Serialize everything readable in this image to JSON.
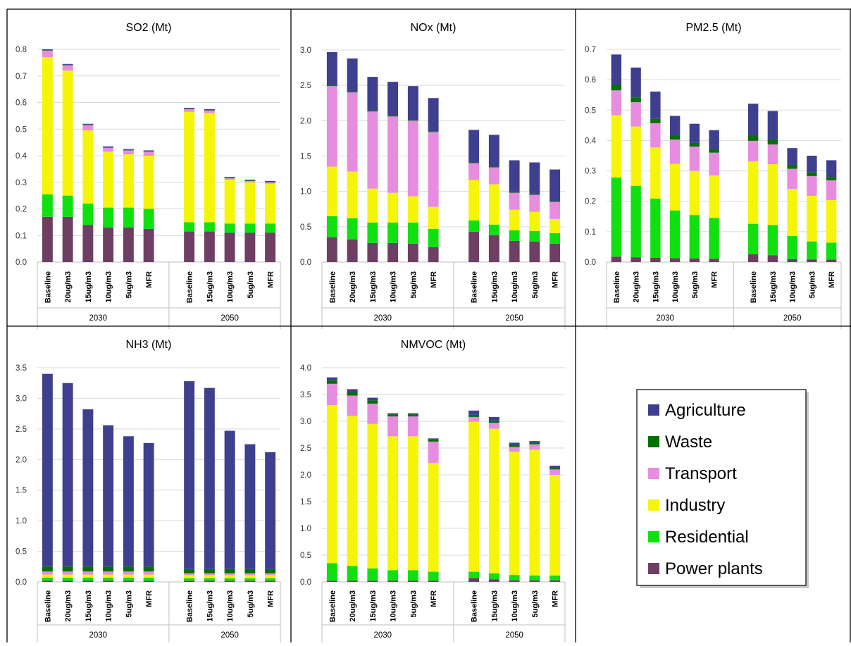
{
  "chart_data": [
    {
      "type": "bar",
      "stacked": true,
      "title": "SO2 (Mt)",
      "ylim": [
        0,
        0.8
      ],
      "yticks": [
        0.0,
        0.1,
        0.2,
        0.3,
        0.4,
        0.5,
        0.6,
        0.7,
        0.8
      ],
      "ytick_labels": [
        "0.0",
        "0.1",
        "0.2",
        "0.3",
        "0.4",
        "0.5",
        "0.6",
        "0.7",
        "0.8"
      ],
      "groups": [
        {
          "label": "2030",
          "categories": [
            "Baseline",
            "20ug/m3",
            "15ug/m3",
            "10ug/m3",
            "5ug/m3",
            "MFR"
          ]
        },
        {
          "label": "2050",
          "categories": [
            "Baseline",
            "15ug/m3",
            "10ug/m3",
            "5ug/m3",
            "MFR"
          ]
        }
      ],
      "series": [
        {
          "name": "Power plants",
          "values": [
            0.17,
            0.17,
            0.14,
            0.13,
            0.13,
            0.125,
            0.115,
            0.115,
            0.11,
            0.11,
            0.11
          ]
        },
        {
          "name": "Residential",
          "values": [
            0.085,
            0.08,
            0.08,
            0.075,
            0.075,
            0.075,
            0.035,
            0.035,
            0.035,
            0.035,
            0.035
          ]
        },
        {
          "name": "Industry",
          "values": [
            0.515,
            0.47,
            0.275,
            0.21,
            0.2,
            0.2,
            0.415,
            0.41,
            0.165,
            0.155,
            0.15
          ]
        },
        {
          "name": "Transport",
          "values": [
            0.025,
            0.02,
            0.02,
            0.015,
            0.015,
            0.015,
            0.01,
            0.01,
            0.005,
            0.005,
            0.005
          ]
        },
        {
          "name": "Waste",
          "values": [
            0.002,
            0.002,
            0.002,
            0.002,
            0.002,
            0.002,
            0.002,
            0.002,
            0.002,
            0.002,
            0.002
          ]
        },
        {
          "name": "Agriculture",
          "values": [
            0.003,
            0.003,
            0.003,
            0.003,
            0.003,
            0.003,
            0.003,
            0.003,
            0.003,
            0.003,
            0.003
          ]
        }
      ]
    },
    {
      "type": "bar",
      "stacked": true,
      "title": "NOx (Mt)",
      "ylim": [
        0,
        3.0
      ],
      "yticks": [
        0.0,
        0.5,
        1.0,
        1.5,
        2.0,
        2.5,
        3.0
      ],
      "ytick_labels": [
        "0.0",
        "0.5",
        "1.0",
        "1.5",
        "2.0",
        "2.5",
        "3.0"
      ],
      "groups": [
        {
          "label": "2030",
          "categories": [
            "Baseline",
            "20ug/m3",
            "15ug/m3",
            "10ug/m3",
            "5ug/m3",
            "MFR"
          ]
        },
        {
          "label": "2050",
          "categories": [
            "Baseline",
            "15ug/m3",
            "10ug/m3",
            "5ug/m3",
            "MFR"
          ]
        }
      ],
      "series": [
        {
          "name": "Power plants",
          "values": [
            0.35,
            0.32,
            0.27,
            0.27,
            0.26,
            0.21,
            0.43,
            0.38,
            0.3,
            0.29,
            0.26
          ]
        },
        {
          "name": "Residential",
          "values": [
            0.3,
            0.3,
            0.29,
            0.29,
            0.3,
            0.26,
            0.16,
            0.15,
            0.15,
            0.15,
            0.15
          ]
        },
        {
          "name": "Industry",
          "values": [
            0.7,
            0.66,
            0.48,
            0.42,
            0.37,
            0.31,
            0.57,
            0.57,
            0.29,
            0.27,
            0.2
          ]
        },
        {
          "name": "Transport",
          "values": [
            1.14,
            1.12,
            1.09,
            1.08,
            1.07,
            1.06,
            0.24,
            0.24,
            0.24,
            0.24,
            0.24
          ]
        },
        {
          "name": "Waste",
          "values": [
            0.01,
            0.01,
            0.01,
            0.01,
            0.01,
            0.01,
            0.01,
            0.01,
            0.01,
            0.01,
            0.01
          ]
        },
        {
          "name": "Agriculture",
          "values": [
            0.47,
            0.47,
            0.48,
            0.48,
            0.48,
            0.47,
            0.46,
            0.45,
            0.45,
            0.45,
            0.45
          ]
        }
      ]
    },
    {
      "type": "bar",
      "stacked": true,
      "title": "PM2.5 (Mt)",
      "ylim": [
        0,
        0.7
      ],
      "yticks": [
        0.0,
        0.1,
        0.2,
        0.3,
        0.4,
        0.5,
        0.6,
        0.7
      ],
      "ytick_labels": [
        "0.0",
        "0.1",
        "0.2",
        "0.3",
        "0.4",
        "0.5",
        "0.6",
        "0.7"
      ],
      "groups": [
        {
          "label": "2030",
          "categories": [
            "Baseline",
            "20ug/m3",
            "15ug/m3",
            "10ug/m3",
            "5ug/m3",
            "MFR"
          ]
        },
        {
          "label": "2050",
          "categories": [
            "Baseline",
            "15ug/m3",
            "10ug/m3",
            "5ug/m3",
            "MFR"
          ]
        }
      ],
      "series": [
        {
          "name": "Power plants",
          "values": [
            0.018,
            0.016,
            0.014,
            0.013,
            0.012,
            0.011,
            0.026,
            0.022,
            0.01,
            0.009,
            0.008
          ]
        },
        {
          "name": "Residential",
          "values": [
            0.26,
            0.235,
            0.195,
            0.157,
            0.143,
            0.134,
            0.1,
            0.1,
            0.076,
            0.059,
            0.056
          ]
        },
        {
          "name": "Industry",
          "values": [
            0.205,
            0.195,
            0.168,
            0.153,
            0.145,
            0.14,
            0.205,
            0.2,
            0.155,
            0.15,
            0.14
          ]
        },
        {
          "name": "Transport",
          "values": [
            0.082,
            0.08,
            0.08,
            0.08,
            0.08,
            0.075,
            0.068,
            0.065,
            0.066,
            0.065,
            0.065
          ]
        },
        {
          "name": "Waste",
          "values": [
            0.018,
            0.016,
            0.014,
            0.013,
            0.012,
            0.011,
            0.017,
            0.015,
            0.013,
            0.012,
            0.011
          ]
        },
        {
          "name": "Agriculture",
          "values": [
            0.1,
            0.098,
            0.09,
            0.065,
            0.063,
            0.063,
            0.105,
            0.095,
            0.055,
            0.055,
            0.055
          ]
        }
      ]
    },
    {
      "type": "bar",
      "stacked": true,
      "title": "NH3 (Mt)",
      "ylim": [
        0,
        3.5
      ],
      "yticks": [
        0.0,
        0.5,
        1.0,
        1.5,
        2.0,
        2.5,
        3.0,
        3.5
      ],
      "ytick_labels": [
        "0.0",
        "0.5",
        "1.0",
        "1.5",
        "2.0",
        "2.5",
        "3.0",
        "3.5"
      ],
      "groups": [
        {
          "label": "2030",
          "categories": [
            "Baseline",
            "20ug/m3",
            "15ug/m3",
            "10ug/m3",
            "5ug/m3",
            "MFR"
          ]
        },
        {
          "label": "2050",
          "categories": [
            "Baseline",
            "15ug/m3",
            "10ug/m3",
            "5ug/m3",
            "MFR"
          ]
        }
      ],
      "series": [
        {
          "name": "Power plants",
          "values": [
            0.02,
            0.02,
            0.02,
            0.02,
            0.02,
            0.02,
            0.02,
            0.02,
            0.02,
            0.02,
            0.02
          ]
        },
        {
          "name": "Residential",
          "values": [
            0.05,
            0.05,
            0.05,
            0.05,
            0.05,
            0.05,
            0.04,
            0.04,
            0.04,
            0.04,
            0.04
          ]
        },
        {
          "name": "Industry",
          "values": [
            0.05,
            0.05,
            0.05,
            0.05,
            0.05,
            0.05,
            0.05,
            0.05,
            0.05,
            0.05,
            0.05
          ]
        },
        {
          "name": "Transport",
          "values": [
            0.05,
            0.05,
            0.05,
            0.05,
            0.05,
            0.05,
            0.03,
            0.03,
            0.03,
            0.03,
            0.03
          ]
        },
        {
          "name": "Waste",
          "values": [
            0.08,
            0.08,
            0.08,
            0.08,
            0.08,
            0.08,
            0.07,
            0.07,
            0.07,
            0.07,
            0.07
          ]
        },
        {
          "name": "Agriculture",
          "values": [
            3.15,
            3.0,
            2.57,
            2.31,
            2.13,
            2.02,
            3.07,
            2.96,
            2.26,
            2.04,
            1.91
          ]
        }
      ]
    },
    {
      "type": "bar",
      "stacked": true,
      "title": "NMVOC (Mt)",
      "ylim": [
        0,
        4.0
      ],
      "yticks": [
        0.0,
        0.5,
        1.0,
        1.5,
        2.0,
        2.5,
        3.0,
        3.5,
        4.0
      ],
      "ytick_labels": [
        "0.0",
        "0.5",
        "1.0",
        "1.5",
        "2.0",
        "2.5",
        "3.0",
        "3.5",
        "4.0"
      ],
      "groups": [
        {
          "label": "2030",
          "categories": [
            "Baseline",
            "20ug/m3",
            "15ug/m3",
            "10ug/m3",
            "5ug/m3",
            "MFR"
          ]
        },
        {
          "label": "2050",
          "categories": [
            "Baseline",
            "15ug/m3",
            "10ug/m3",
            "5ug/m3",
            "MFR"
          ]
        }
      ],
      "series": [
        {
          "name": "Power plants",
          "values": [
            0.02,
            0.02,
            0.02,
            0.02,
            0.02,
            0.02,
            0.07,
            0.05,
            0.03,
            0.03,
            0.03
          ]
        },
        {
          "name": "Residential",
          "values": [
            0.33,
            0.28,
            0.23,
            0.2,
            0.2,
            0.17,
            0.12,
            0.11,
            0.1,
            0.09,
            0.09
          ]
        },
        {
          "name": "Industry",
          "values": [
            2.95,
            2.8,
            2.7,
            2.5,
            2.5,
            2.03,
            2.8,
            2.7,
            2.3,
            2.35,
            1.88
          ]
        },
        {
          "name": "Transport",
          "values": [
            0.4,
            0.38,
            0.38,
            0.37,
            0.37,
            0.4,
            0.09,
            0.11,
            0.09,
            0.1,
            0.1
          ]
        },
        {
          "name": "Waste",
          "values": [
            0.06,
            0.06,
            0.06,
            0.04,
            0.04,
            0.04,
            0.04,
            0.04,
            0.04,
            0.03,
            0.03
          ]
        },
        {
          "name": "Agriculture",
          "values": [
            0.06,
            0.06,
            0.05,
            0.02,
            0.02,
            0.02,
            0.08,
            0.07,
            0.04,
            0.03,
            0.04
          ]
        }
      ]
    }
  ],
  "legend": {
    "items": [
      {
        "name": "Agriculture",
        "color": "#3f3f8f"
      },
      {
        "name": "Waste",
        "color": "#007000"
      },
      {
        "name": "Transport",
        "color": "#e88ce0"
      },
      {
        "name": "Industry",
        "color": "#f5f50a"
      },
      {
        "name": "Residential",
        "color": "#10e010"
      },
      {
        "name": "Power plants",
        "color": "#6e3f62"
      }
    ]
  },
  "colors": {
    "Power plants": "#6e3f62",
    "Residential": "#10e010",
    "Industry": "#f5f50a",
    "Transport": "#e88ce0",
    "Waste": "#007000",
    "Agriculture": "#3f3f8f"
  }
}
